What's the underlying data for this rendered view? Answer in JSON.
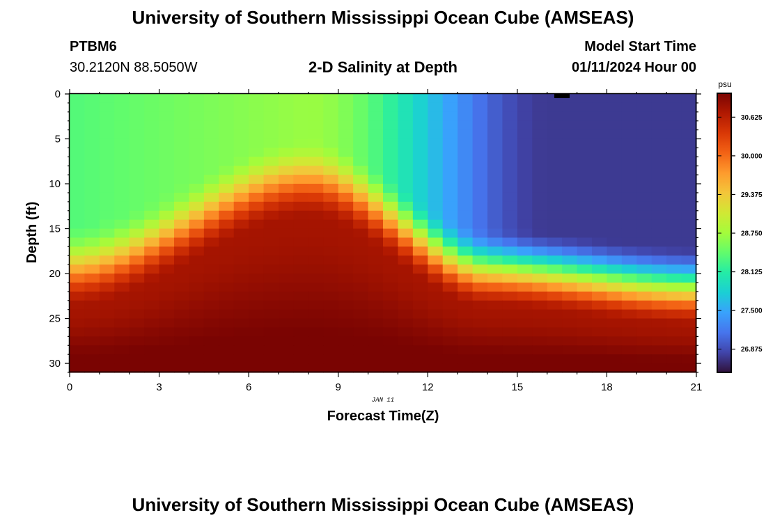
{
  "header": {
    "title": "University of Southern Mississippi Ocean Cube (AMSEAS)",
    "station_id": "PTBM6",
    "coordinates": "30.2120N  88.5050W",
    "plot_title": "2-D Salinity at Depth",
    "model_start_label": "Model Start Time",
    "model_start_value": "01/11/2024 Hour 00"
  },
  "footer": {
    "title": "University of Southern Mississippi Ocean Cube (AMSEAS)"
  },
  "chart_data": {
    "type": "heatmap",
    "title": "2-D Salinity at Depth",
    "xlabel": "Forecast Time(Z)",
    "ylabel": "Depth (ft)",
    "x_range": [
      0,
      21
    ],
    "y_range": [
      0,
      31
    ],
    "y_inverted": true,
    "x_ticks": [
      "0",
      "3",
      "6",
      "9",
      "12",
      "15",
      "18",
      "21"
    ],
    "y_ticks": [
      "0",
      "5",
      "10",
      "15",
      "20",
      "25",
      "30"
    ],
    "date_annotation": "JAN 11",
    "colorbar": {
      "unit": "psu",
      "min": 26.5,
      "max": 31.0,
      "ticks": [
        "30.625",
        "30.000",
        "29.375",
        "28.750",
        "28.125",
        "27.500",
        "26.875"
      ],
      "colors": [
        "#30123b",
        "#4145ab",
        "#4675ed",
        "#39a2fc",
        "#1bcfd4",
        "#24eca6",
        "#61fc6c",
        "#a4fc3b",
        "#d1e834",
        "#f3c63a",
        "#fe9b2d",
        "#f36315",
        "#d93806",
        "#b11901",
        "#7a0402"
      ]
    },
    "grid": {
      "x_steps": 42,
      "y_steps": 31
    },
    "description": "Salinity (psu) vs forecast hour and depth; upper-right fresh (~26.7 psu), bottom layer salty (~31 psu), salty dome near hour 8"
  }
}
